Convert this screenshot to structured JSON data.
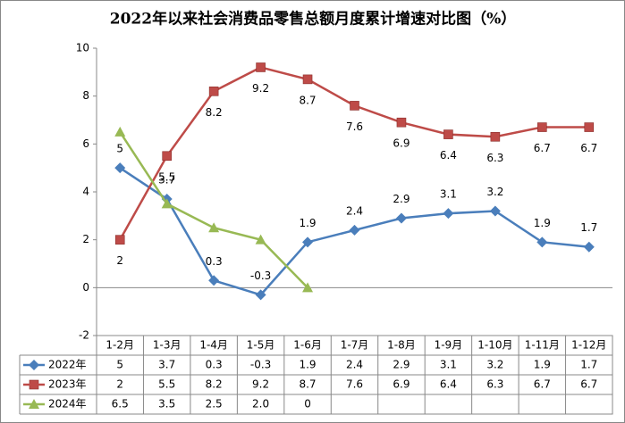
{
  "chart_data": {
    "type": "line",
    "title": "2022年以来社会消费品零售总额月度累计增速对比图（%）",
    "categories": [
      "1-2月",
      "1-3月",
      "1-4月",
      "1-5月",
      "1-6月",
      "1-7月",
      "1-8月",
      "1-9月",
      "1-10月",
      "1-11月",
      "1-12月"
    ],
    "series": [
      {
        "name": "2022年",
        "color": "#4a7ebb",
        "marker": "diamond",
        "labels": "above",
        "values": [
          5,
          3.7,
          0.3,
          -0.3,
          1.9,
          2.4,
          2.9,
          3.1,
          3.2,
          1.9,
          1.7
        ]
      },
      {
        "name": "2023年",
        "color": "#be4b48",
        "marker": "square",
        "labels": "below",
        "values": [
          2,
          5.5,
          8.2,
          9.2,
          8.7,
          7.6,
          6.9,
          6.4,
          6.3,
          6.7,
          6.7
        ]
      },
      {
        "name": "2024年",
        "color": "#98b954",
        "marker": "triangle",
        "values": [
          6.5,
          3.5,
          2.5,
          2.0,
          0,
          null,
          null,
          null,
          null,
          null,
          null
        ],
        "value_labels": [
          "6.5",
          "3.5",
          "2.5",
          "2.0",
          "0",
          null,
          null,
          null,
          null,
          null,
          null
        ]
      }
    ],
    "ylim": [
      -2,
      10
    ],
    "yticks": [
      -2,
      0,
      2,
      4,
      6,
      8,
      10
    ],
    "grid": false,
    "data_table": true
  }
}
